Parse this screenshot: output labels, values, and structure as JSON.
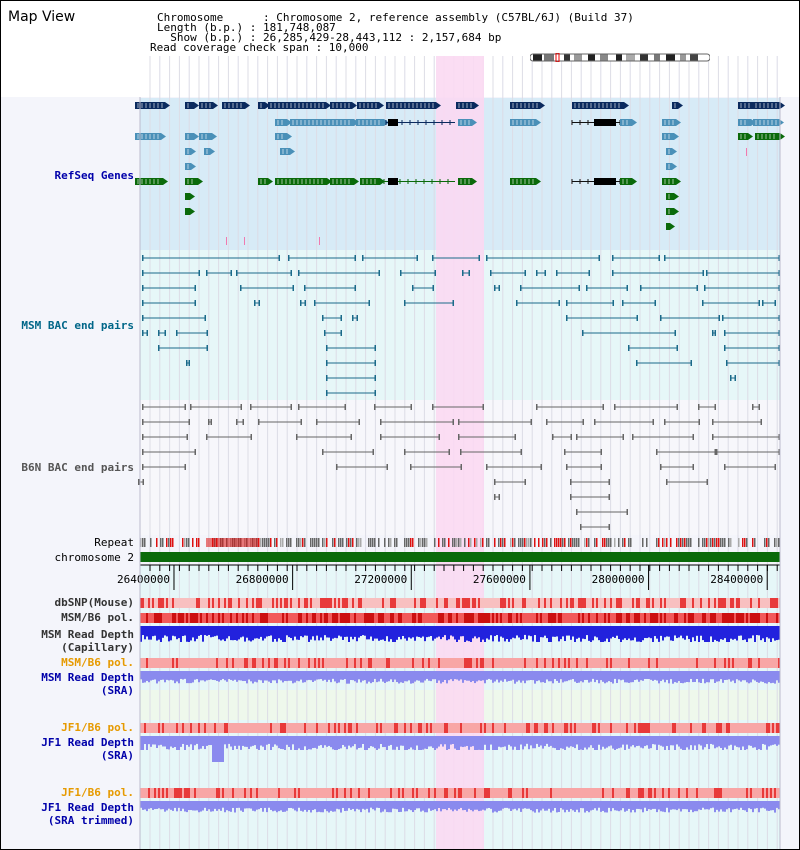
{
  "view": {
    "title": "Map View"
  },
  "header": {
    "chromosome_key": "Chromosome      : Chromosome 2, reference assembly (C57BL/6J) (Build 37)",
    "length_line": "Length (b.p.) : 181,748,087",
    "show_line": "  Show (b.p.) : 26,285,429-28,443,112 : 2,157,684 bp",
    "coverage_line": "Read coverage check span : 10,000"
  },
  "tracks": {
    "refseq": {
      "label": "RefSeq Genes",
      "color": "#0000aa"
    },
    "msm_bac": {
      "label": "MSM BAC end pairs",
      "color": "#006688"
    },
    "b6n_bac": {
      "label": "B6N BAC end pairs",
      "color": "#555555"
    },
    "repeat": {
      "label": "Repeat"
    },
    "chromosome": {
      "label": "chromosome 2",
      "color": "#006600"
    },
    "dbsnp": {
      "label": "dbSNP(Mouse)"
    },
    "msm_b6_pol_1": {
      "label": "MSM/B6 pol."
    },
    "msm_depth_cap": {
      "label_1": "MSM Read Depth",
      "label_2": "(Capillary)"
    },
    "msm_b6_pol_2": {
      "label": "MSM/B6 pol."
    },
    "msm_depth_sra": {
      "label_1": "MSM Read Depth",
      "label_2": "(SRA)"
    },
    "jf1_b6_pol_1": {
      "label": "JF1/B6 pol."
    },
    "jf1_depth_sra": {
      "label_1": "JF1 Read Depth",
      "label_2": "(SRA)"
    },
    "jf1_b6_pol_2": {
      "label": "JF1/B6 pol."
    },
    "jf1_depth_trim": {
      "label_1": "JF1 Read Depth",
      "label_2": "(SRA trimmed)"
    }
  },
  "axis": {
    "range": [
      26285429,
      28443112
    ],
    "ticks": [
      "26400000",
      "26800000",
      "27200000",
      "27600000",
      "28000000",
      "28400000"
    ]
  },
  "colors": {
    "refseq_bg": "#d7ebf7",
    "msm_bg": "#e6f7f8",
    "b6n_bg": "#f7f7fb",
    "highlight": "#fbd9f2",
    "gene_navy": "#0a2a5e",
    "gene_blue": "#4a90b8",
    "gene_green": "#0a6a0a",
    "msm_line": "#1a6a8a",
    "b6n_line": "#666666",
    "depth_blue": "#2222dd",
    "depth_light": "#8a8aee",
    "pol_red": "#e83a3a",
    "pol_pink": "#f8a6a6"
  }
}
